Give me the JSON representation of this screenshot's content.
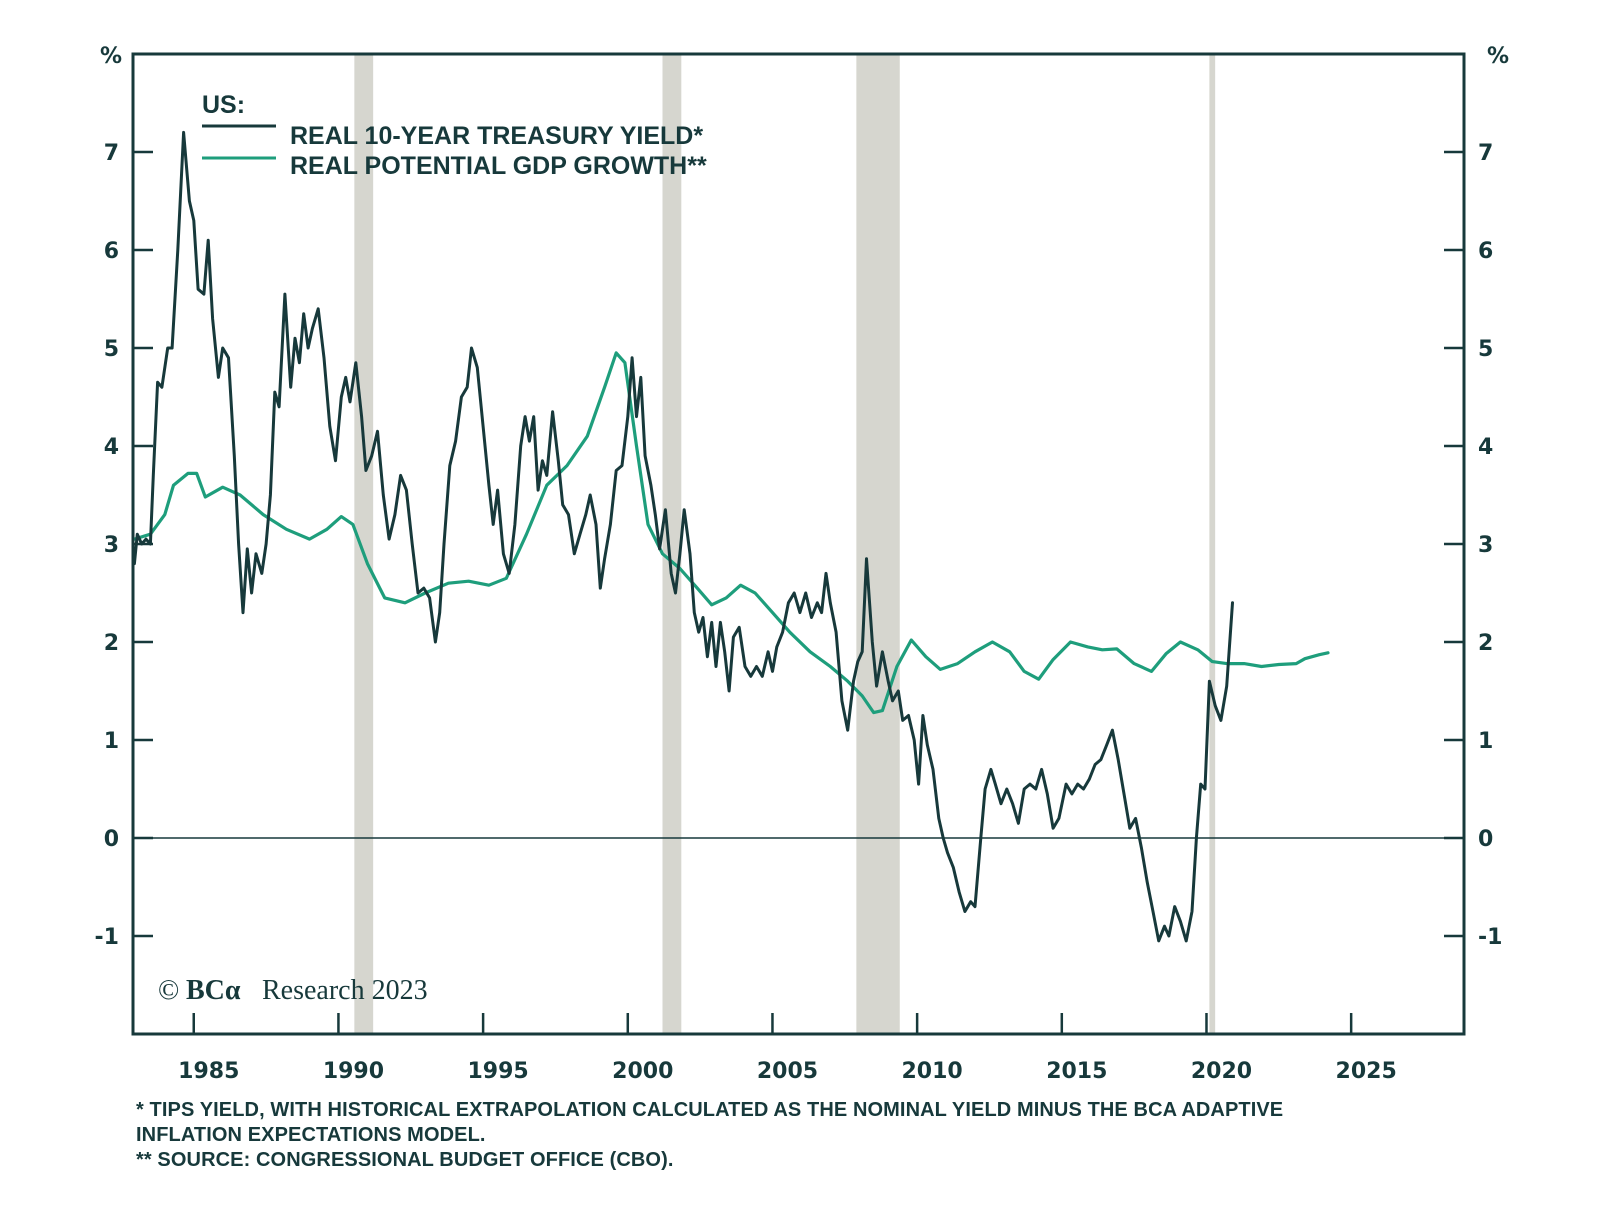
{
  "chart_data": {
    "type": "line",
    "title": "US:",
    "xlabel": "",
    "ylabel_left": "%",
    "ylabel_right": "%",
    "xlim": [
      1982.9,
      2028.9
    ],
    "ylim": [
      -2,
      8
    ],
    "x_ticks": [
      1985,
      1990,
      1995,
      2000,
      2005,
      2010,
      2015,
      2020,
      2025
    ],
    "x_tick_labels": [
      "1985",
      "1990",
      "1995",
      "2000",
      "2005",
      "2010",
      "2015",
      "2020",
      "2025"
    ],
    "y_ticks": [
      -1,
      0,
      1,
      2,
      3,
      4,
      5,
      6,
      7
    ],
    "y_tick_labels": [
      "-1",
      "0",
      "1",
      "2",
      "3",
      "4",
      "5",
      "6",
      "7"
    ],
    "grid": false,
    "zero_line": true,
    "legend": {
      "placement": "top-left",
      "header": "US:",
      "entries": [
        "REAL 10-YEAR TREASURY YIELD*",
        "REAL POTENTIAL GDP GROWTH**"
      ]
    },
    "recession_shading": [
      [
        1990.55,
        1991.2
      ],
      [
        2001.2,
        2001.85
      ],
      [
        2007.9,
        2009.4
      ],
      [
        2020.1,
        2020.3
      ]
    ],
    "series": [
      {
        "name": "REAL 10-YEAR TREASURY YIELD*",
        "color": "#17393b",
        "points": [
          [
            1982.95,
            2.8
          ],
          [
            1983.05,
            3.1
          ],
          [
            1983.2,
            3.0
          ],
          [
            1983.35,
            3.05
          ],
          [
            1983.5,
            3.0
          ],
          [
            1983.6,
            3.7
          ],
          [
            1983.75,
            4.65
          ],
          [
            1983.9,
            4.6
          ],
          [
            1984.1,
            5.0
          ],
          [
            1984.25,
            5.0
          ],
          [
            1984.45,
            6.0
          ],
          [
            1984.65,
            7.2
          ],
          [
            1984.85,
            6.5
          ],
          [
            1985.0,
            6.3
          ],
          [
            1985.15,
            5.6
          ],
          [
            1985.35,
            5.55
          ],
          [
            1985.5,
            6.1
          ],
          [
            1985.65,
            5.3
          ],
          [
            1985.85,
            4.7
          ],
          [
            1986.0,
            5.0
          ],
          [
            1986.2,
            4.9
          ],
          [
            1986.4,
            3.9
          ],
          [
            1986.55,
            3.0
          ],
          [
            1986.7,
            2.3
          ],
          [
            1986.85,
            2.95
          ],
          [
            1987.0,
            2.5
          ],
          [
            1987.15,
            2.9
          ],
          [
            1987.35,
            2.7
          ],
          [
            1987.5,
            3.0
          ],
          [
            1987.65,
            3.5
          ],
          [
            1987.8,
            4.55
          ],
          [
            1987.95,
            4.4
          ],
          [
            1988.15,
            5.55
          ],
          [
            1988.35,
            4.6
          ],
          [
            1988.5,
            5.1
          ],
          [
            1988.65,
            4.85
          ],
          [
            1988.8,
            5.35
          ],
          [
            1988.95,
            5.0
          ],
          [
            1989.1,
            5.2
          ],
          [
            1989.3,
            5.4
          ],
          [
            1989.5,
            4.9
          ],
          [
            1989.7,
            4.2
          ],
          [
            1989.9,
            3.85
          ],
          [
            1990.1,
            4.5
          ],
          [
            1990.25,
            4.7
          ],
          [
            1990.4,
            4.45
          ],
          [
            1990.6,
            4.85
          ],
          [
            1990.8,
            4.3
          ],
          [
            1990.95,
            3.75
          ],
          [
            1991.15,
            3.9
          ],
          [
            1991.35,
            4.15
          ],
          [
            1991.55,
            3.5
          ],
          [
            1991.75,
            3.05
          ],
          [
            1991.95,
            3.3
          ],
          [
            1992.15,
            3.7
          ],
          [
            1992.35,
            3.55
          ],
          [
            1992.55,
            3.0
          ],
          [
            1992.75,
            2.5
          ],
          [
            1992.95,
            2.55
          ],
          [
            1993.15,
            2.45
          ],
          [
            1993.35,
            2.0
          ],
          [
            1993.5,
            2.3
          ],
          [
            1993.65,
            3.0
          ],
          [
            1993.85,
            3.8
          ],
          [
            1994.05,
            4.05
          ],
          [
            1994.25,
            4.5
          ],
          [
            1994.45,
            4.6
          ],
          [
            1994.6,
            5.0
          ],
          [
            1994.8,
            4.8
          ],
          [
            1995.0,
            4.2
          ],
          [
            1995.2,
            3.6
          ],
          [
            1995.35,
            3.2
          ],
          [
            1995.5,
            3.55
          ],
          [
            1995.7,
            2.9
          ],
          [
            1995.9,
            2.7
          ],
          [
            1996.1,
            3.2
          ],
          [
            1996.3,
            4.0
          ],
          [
            1996.45,
            4.3
          ],
          [
            1996.6,
            4.05
          ],
          [
            1996.75,
            4.3
          ],
          [
            1996.9,
            3.55
          ],
          [
            1997.05,
            3.85
          ],
          [
            1997.2,
            3.7
          ],
          [
            1997.4,
            4.35
          ],
          [
            1997.6,
            3.85
          ],
          [
            1997.75,
            3.4
          ],
          [
            1997.95,
            3.3
          ],
          [
            1998.15,
            2.9
          ],
          [
            1998.35,
            3.1
          ],
          [
            1998.55,
            3.3
          ],
          [
            1998.7,
            3.5
          ],
          [
            1998.9,
            3.2
          ],
          [
            1999.05,
            2.55
          ],
          [
            1999.2,
            2.85
          ],
          [
            1999.4,
            3.2
          ],
          [
            1999.6,
            3.75
          ],
          [
            1999.8,
            3.8
          ],
          [
            2000.0,
            4.3
          ],
          [
            2000.15,
            4.9
          ],
          [
            2000.3,
            4.3
          ],
          [
            2000.45,
            4.7
          ],
          [
            2000.6,
            3.9
          ],
          [
            2000.8,
            3.6
          ],
          [
            2000.95,
            3.3
          ],
          [
            2001.1,
            2.95
          ],
          [
            2001.3,
            3.35
          ],
          [
            2001.5,
            2.7
          ],
          [
            2001.65,
            2.5
          ],
          [
            2001.8,
            2.9
          ],
          [
            2001.95,
            3.35
          ],
          [
            2002.15,
            2.9
          ],
          [
            2002.3,
            2.3
          ],
          [
            2002.45,
            2.1
          ],
          [
            2002.6,
            2.25
          ],
          [
            2002.75,
            1.85
          ],
          [
            2002.9,
            2.2
          ],
          [
            2003.05,
            1.75
          ],
          [
            2003.2,
            2.2
          ],
          [
            2003.35,
            1.9
          ],
          [
            2003.5,
            1.5
          ],
          [
            2003.65,
            2.05
          ],
          [
            2003.85,
            2.15
          ],
          [
            2004.05,
            1.75
          ],
          [
            2004.25,
            1.65
          ],
          [
            2004.45,
            1.75
          ],
          [
            2004.65,
            1.65
          ],
          [
            2004.85,
            1.9
          ],
          [
            2005.0,
            1.7
          ],
          [
            2005.15,
            1.95
          ],
          [
            2005.35,
            2.1
          ],
          [
            2005.55,
            2.4
          ],
          [
            2005.75,
            2.5
          ],
          [
            2005.95,
            2.3
          ],
          [
            2006.15,
            2.5
          ],
          [
            2006.35,
            2.25
          ],
          [
            2006.55,
            2.4
          ],
          [
            2006.7,
            2.3
          ],
          [
            2006.85,
            2.7
          ],
          [
            2007.0,
            2.4
          ],
          [
            2007.2,
            2.1
          ],
          [
            2007.4,
            1.4
          ],
          [
            2007.6,
            1.1
          ],
          [
            2007.8,
            1.6
          ],
          [
            2007.95,
            1.8
          ],
          [
            2008.1,
            1.9
          ],
          [
            2008.25,
            2.85
          ],
          [
            2008.45,
            2.0
          ],
          [
            2008.6,
            1.55
          ],
          [
            2008.8,
            1.9
          ],
          [
            2009.0,
            1.6
          ],
          [
            2009.15,
            1.4
          ],
          [
            2009.35,
            1.5
          ],
          [
            2009.5,
            1.2
          ],
          [
            2009.7,
            1.25
          ],
          [
            2009.9,
            1.0
          ],
          [
            2010.05,
            0.55
          ],
          [
            2010.2,
            1.25
          ],
          [
            2010.35,
            0.95
          ],
          [
            2010.55,
            0.7
          ],
          [
            2010.75,
            0.2
          ],
          [
            2010.9,
            0.0
          ],
          [
            2011.05,
            -0.15
          ],
          [
            2011.25,
            -0.3
          ],
          [
            2011.45,
            -0.55
          ],
          [
            2011.65,
            -0.75
          ],
          [
            2011.85,
            -0.65
          ],
          [
            2012.0,
            -0.7
          ],
          [
            2012.2,
            0.0
          ],
          [
            2012.35,
            0.5
          ],
          [
            2012.55,
            0.7
          ],
          [
            2012.7,
            0.55
          ],
          [
            2012.9,
            0.35
          ],
          [
            2013.1,
            0.5
          ],
          [
            2013.3,
            0.35
          ],
          [
            2013.5,
            0.15
          ],
          [
            2013.7,
            0.5
          ],
          [
            2013.9,
            0.55
          ],
          [
            2014.1,
            0.5
          ],
          [
            2014.3,
            0.7
          ],
          [
            2014.5,
            0.45
          ],
          [
            2014.7,
            0.1
          ],
          [
            2014.9,
            0.2
          ],
          [
            2015.15,
            0.55
          ],
          [
            2015.35,
            0.45
          ],
          [
            2015.55,
            0.55
          ],
          [
            2015.75,
            0.5
          ],
          [
            2015.95,
            0.6
          ],
          [
            2016.15,
            0.75
          ],
          [
            2016.35,
            0.8
          ],
          [
            2016.55,
            0.95
          ],
          [
            2016.75,
            1.1
          ],
          [
            2016.95,
            0.8
          ],
          [
            2017.15,
            0.45
          ],
          [
            2017.35,
            0.1
          ],
          [
            2017.55,
            0.2
          ],
          [
            2017.75,
            -0.1
          ],
          [
            2017.95,
            -0.45
          ],
          [
            2018.15,
            -0.75
          ],
          [
            2018.35,
            -1.05
          ],
          [
            2018.55,
            -0.9
          ],
          [
            2018.7,
            -1.0
          ],
          [
            2018.9,
            -0.7
          ],
          [
            2019.1,
            -0.85
          ],
          [
            2019.3,
            -1.05
          ],
          [
            2019.5,
            -0.75
          ],
          [
            2019.65,
            0.0
          ],
          [
            2019.8,
            0.55
          ],
          [
            2019.95,
            0.5
          ],
          [
            2020.1,
            1.6
          ],
          [
            2020.3,
            1.35
          ],
          [
            2020.5,
            1.2
          ],
          [
            2020.7,
            1.55
          ],
          [
            2020.9,
            2.4
          ]
        ]
      },
      {
        "name": "REAL POTENTIAL GDP GROWTH**",
        "color": "#1e9e7c",
        "points": [
          [
            1982.95,
            3.05
          ],
          [
            1983.5,
            3.1
          ],
          [
            1984.0,
            3.3
          ],
          [
            1984.3,
            3.6
          ],
          [
            1984.8,
            3.72
          ],
          [
            1985.1,
            3.72
          ],
          [
            1985.4,
            3.48
          ],
          [
            1986.0,
            3.58
          ],
          [
            1986.6,
            3.5
          ],
          [
            1987.4,
            3.3
          ],
          [
            1988.2,
            3.15
          ],
          [
            1989.0,
            3.05
          ],
          [
            1989.6,
            3.15
          ],
          [
            1990.1,
            3.28
          ],
          [
            1990.5,
            3.2
          ],
          [
            1991.0,
            2.8
          ],
          [
            1991.6,
            2.45
          ],
          [
            1992.3,
            2.4
          ],
          [
            1993.0,
            2.5
          ],
          [
            1993.8,
            2.6
          ],
          [
            1994.5,
            2.62
          ],
          [
            1995.2,
            2.58
          ],
          [
            1995.8,
            2.65
          ],
          [
            1996.5,
            3.1
          ],
          [
            1997.2,
            3.6
          ],
          [
            1997.9,
            3.8
          ],
          [
            1998.6,
            4.1
          ],
          [
            1999.2,
            4.6
          ],
          [
            1999.6,
            4.95
          ],
          [
            1999.9,
            4.85
          ],
          [
            2000.3,
            4.0
          ],
          [
            2000.7,
            3.2
          ],
          [
            2001.2,
            2.9
          ],
          [
            2001.8,
            2.75
          ],
          [
            2002.4,
            2.55
          ],
          [
            2002.9,
            2.38
          ],
          [
            2003.4,
            2.45
          ],
          [
            2003.9,
            2.58
          ],
          [
            2004.4,
            2.5
          ],
          [
            2005.0,
            2.3
          ],
          [
            2005.6,
            2.1
          ],
          [
            2006.3,
            1.9
          ],
          [
            2007.0,
            1.75
          ],
          [
            2007.6,
            1.6
          ],
          [
            2008.1,
            1.45
          ],
          [
            2008.5,
            1.28
          ],
          [
            2008.8,
            1.3
          ],
          [
            2009.3,
            1.75
          ],
          [
            2009.8,
            2.02
          ],
          [
            2010.3,
            1.85
          ],
          [
            2010.8,
            1.72
          ],
          [
            2011.4,
            1.78
          ],
          [
            2012.0,
            1.9
          ],
          [
            2012.6,
            2.0
          ],
          [
            2013.2,
            1.9
          ],
          [
            2013.7,
            1.7
          ],
          [
            2014.2,
            1.62
          ],
          [
            2014.7,
            1.82
          ],
          [
            2015.3,
            2.0
          ],
          [
            2015.9,
            1.95
          ],
          [
            2016.4,
            1.92
          ],
          [
            2016.9,
            1.93
          ],
          [
            2017.5,
            1.78
          ],
          [
            2018.1,
            1.7
          ],
          [
            2018.6,
            1.88
          ],
          [
            2019.1,
            2.0
          ],
          [
            2019.7,
            1.92
          ],
          [
            2020.2,
            1.8
          ],
          [
            2020.7,
            1.78
          ],
          [
            2021.3,
            1.78
          ],
          [
            2021.9,
            1.75
          ],
          [
            2022.5,
            1.77
          ],
          [
            2023.1,
            1.78
          ],
          [
            2023.4,
            1.83
          ],
          [
            2023.9,
            1.87
          ],
          [
            2024.2,
            1.89
          ]
        ]
      }
    ]
  },
  "copyright": {
    "symbol": "©",
    "brand": "BCα",
    "text": "Research 2023"
  },
  "footnotes": [
    "*  TIPS YIELD, WITH HISTORICAL EXTRAPOLATION CALCULATED AS THE NOMINAL YIELD MINUS THE BCA ADAPTIVE",
    "INFLATION EXPECTATIONS MODEL.",
    "** SOURCE: CONGRESSIONAL BUDGET OFFICE (CBO)."
  ],
  "colors": {
    "axis": "#17393b",
    "recession": "#d6d6cf",
    "yield_line": "#17393b",
    "gdp_line": "#1e9e7c"
  }
}
